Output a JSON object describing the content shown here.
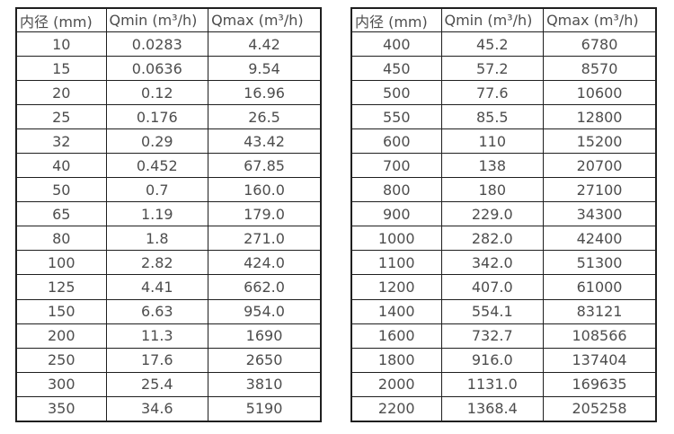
{
  "page": {
    "background_color": "#ffffff",
    "text_color": "#4d4d4d",
    "border_color": "#1f1f1f"
  },
  "tables": [
    {
      "name": "flow-table-small-diameters",
      "headers": [
        "内径 (mm)",
        "Qmin (m³/h)",
        "Qmax (m³/h)"
      ],
      "rows": [
        [
          "10",
          "0.0283",
          "4.42"
        ],
        [
          "15",
          "0.0636",
          "9.54"
        ],
        [
          "20",
          "0.12",
          "16.96"
        ],
        [
          "25",
          "0.176",
          "26.5"
        ],
        [
          "32",
          "0.29",
          "43.42"
        ],
        [
          "40",
          "0.452",
          "67.85"
        ],
        [
          "50",
          "0.7",
          "160.0"
        ],
        [
          "65",
          "1.19",
          "179.0"
        ],
        [
          "80",
          "1.8",
          "271.0"
        ],
        [
          "100",
          "2.82",
          "424.0"
        ],
        [
          "125",
          "4.41",
          "662.0"
        ],
        [
          "150",
          "6.63",
          "954.0"
        ],
        [
          "200",
          "11.3",
          "1690"
        ],
        [
          "250",
          "17.6",
          "2650"
        ],
        [
          "300",
          "25.4",
          "3810"
        ],
        [
          "350",
          "34.6",
          "5190"
        ]
      ]
    },
    {
      "name": "flow-table-large-diameters",
      "headers": [
        "内径 (mm)",
        "Qmin (m³/h)",
        "Qmax (m³/h)"
      ],
      "rows": [
        [
          "400",
          "45.2",
          "6780"
        ],
        [
          "450",
          "57.2",
          "8570"
        ],
        [
          "500",
          "77.6",
          "10600"
        ],
        [
          "550",
          "85.5",
          "12800"
        ],
        [
          "600",
          "110",
          "15200"
        ],
        [
          "700",
          "138",
          "20700"
        ],
        [
          "800",
          "180",
          "27100"
        ],
        [
          "900",
          "229.0",
          "34300"
        ],
        [
          "1000",
          "282.0",
          "42400"
        ],
        [
          "1100",
          "342.0",
          "51300"
        ],
        [
          "1200",
          "407.0",
          "61000"
        ],
        [
          "1400",
          "554.1",
          "83121"
        ],
        [
          "1600",
          "732.7",
          "108566"
        ],
        [
          "1800",
          "916.0",
          "137404"
        ],
        [
          "2000",
          "1131.0",
          "169635"
        ],
        [
          "2200",
          "1368.4",
          "205258"
        ]
      ]
    }
  ],
  "chart_data": [
    {
      "type": "table",
      "title": "",
      "columns": [
        "内径 (mm)",
        "Qmin (m³/h)",
        "Qmax (m³/h)"
      ],
      "rows": [
        [
          10,
          0.0283,
          4.42
        ],
        [
          15,
          0.0636,
          9.54
        ],
        [
          20,
          0.12,
          16.96
        ],
        [
          25,
          0.176,
          26.5
        ],
        [
          32,
          0.29,
          43.42
        ],
        [
          40,
          0.452,
          67.85
        ],
        [
          50,
          0.7,
          160.0
        ],
        [
          65,
          1.19,
          179.0
        ],
        [
          80,
          1.8,
          271.0
        ],
        [
          100,
          2.82,
          424.0
        ],
        [
          125,
          4.41,
          662.0
        ],
        [
          150,
          6.63,
          954.0
        ],
        [
          200,
          11.3,
          1690
        ],
        [
          250,
          17.6,
          2650
        ],
        [
          300,
          25.4,
          3810
        ],
        [
          350,
          34.6,
          5190
        ]
      ]
    },
    {
      "type": "table",
      "title": "",
      "columns": [
        "内径 (mm)",
        "Qmin (m³/h)",
        "Qmax (m³/h)"
      ],
      "rows": [
        [
          400,
          45.2,
          6780
        ],
        [
          450,
          57.2,
          8570
        ],
        [
          500,
          77.6,
          10600
        ],
        [
          550,
          85.5,
          12800
        ],
        [
          600,
          110,
          15200
        ],
        [
          700,
          138,
          20700
        ],
        [
          800,
          180,
          27100
        ],
        [
          900,
          229.0,
          34300
        ],
        [
          1000,
          282.0,
          42400
        ],
        [
          1100,
          342.0,
          51300
        ],
        [
          1200,
          407.0,
          61000
        ],
        [
          1400,
          554.1,
          83121
        ],
        [
          1600,
          732.7,
          108566
        ],
        [
          1800,
          916.0,
          137404
        ],
        [
          2000,
          1131.0,
          169635
        ],
        [
          2200,
          1368.4,
          205258
        ]
      ]
    }
  ]
}
